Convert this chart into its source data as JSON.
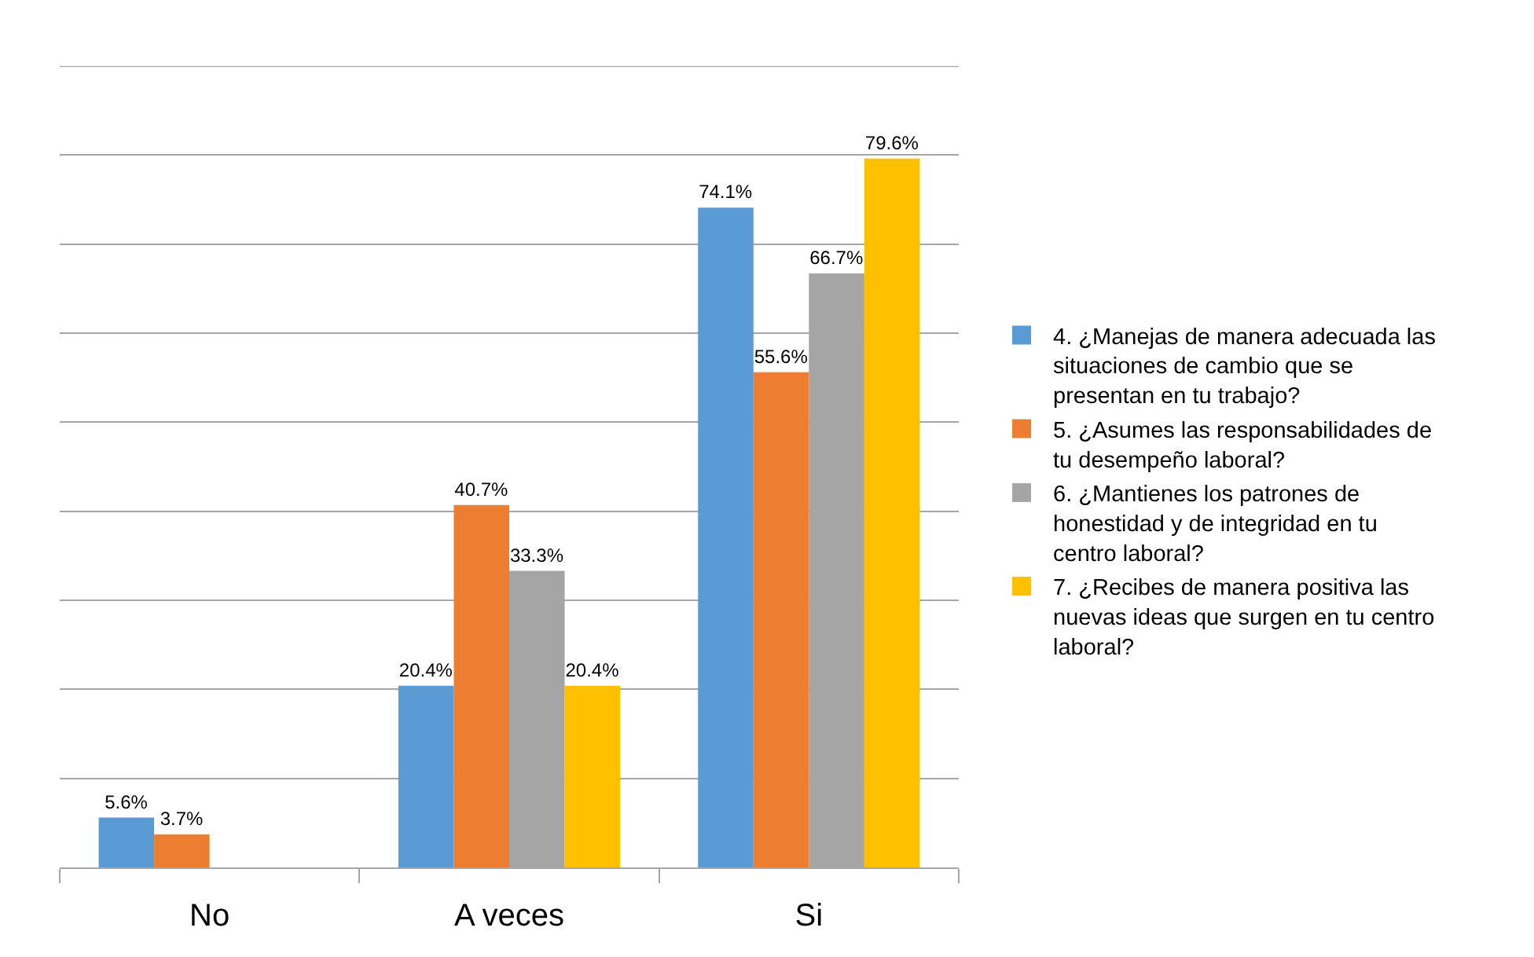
{
  "chart_data": {
    "type": "bar",
    "categories": [
      "No",
      "A veces",
      "Si"
    ],
    "series": [
      {
        "name": "4. ¿Manejas de manera adecuada las situaciones de cambio que se presentan en tu trabajo?",
        "color": "#5b9bd5",
        "values": [
          5.6,
          20.4,
          74.1
        ],
        "value_labels": [
          "5.6%",
          "20.4%",
          "74.1%"
        ]
      },
      {
        "name": "5. ¿Asumes las responsabilidades de tu desempeño laboral?",
        "color": "#ed7d31",
        "values": [
          3.7,
          40.7,
          55.6
        ],
        "value_labels": [
          "3.7%",
          "40.7%",
          "55.6%"
        ]
      },
      {
        "name": "6. ¿Mantienes los patrones de honestidad y de integridad en tu centro laboral?",
        "color": "#a5a5a5",
        "values": [
          null,
          33.3,
          66.7
        ],
        "value_labels": [
          null,
          "33.3%",
          "66.7%"
        ]
      },
      {
        "name": "7. ¿Recibes de manera positiva las nuevas ideas que surgen en tu centro laboral?",
        "color": "#ffc000",
        "values": [
          null,
          20.4,
          79.6
        ],
        "value_labels": [
          null,
          "20.4%",
          "79.6%"
        ]
      }
    ],
    "ylim": [
      0,
      90
    ],
    "yticks": [
      {
        "value": 0,
        "label": null
      },
      {
        "value": 10,
        "label": null
      },
      {
        "value": 20,
        "label": null
      },
      {
        "value": 30,
        "label": null
      },
      {
        "value": 40,
        "label": null
      },
      {
        "value": 50,
        "label": null
      },
      {
        "value": 60,
        "label": null
      },
      {
        "value": 70,
        "label": null
      },
      {
        "value": 80,
        "label": null
      },
      {
        "value": 90,
        "label": null
      }
    ],
    "tick_labels": "x",
    "grid": "y",
    "legend": "right"
  }
}
